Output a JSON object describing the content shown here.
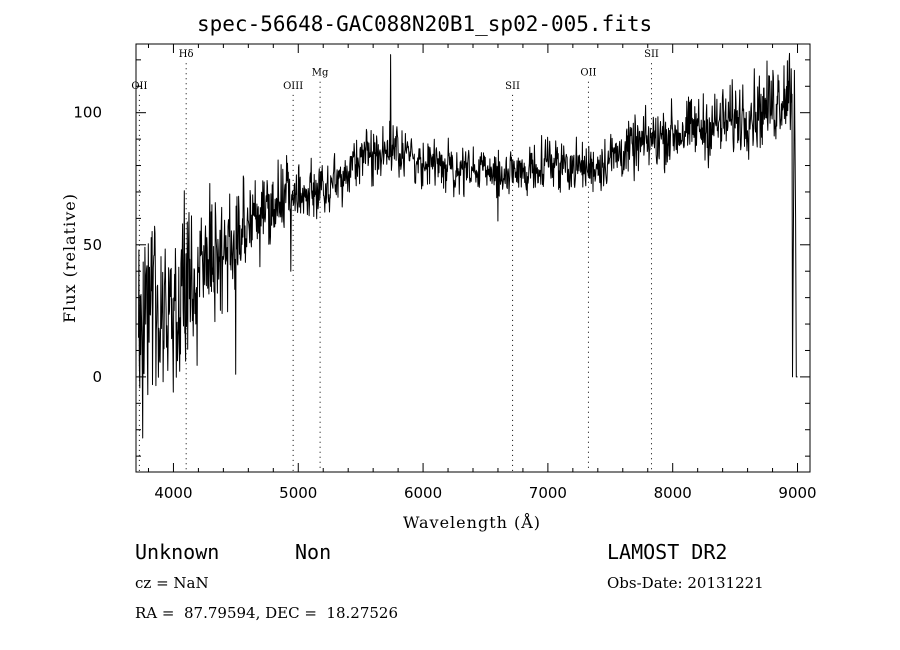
{
  "chart_data": {
    "type": "line",
    "title": "spec-56648-GAC088N20B1_sp02-005.fits",
    "xlabel": "Wavelength (Å)",
    "ylabel": "Flux (relative)",
    "xlim": [
      3700,
      9100
    ],
    "ylim": [
      -36,
      126
    ],
    "x_ticks": [
      4000,
      5000,
      6000,
      7000,
      8000,
      9000
    ],
    "y_ticks": [
      0,
      50,
      100
    ],
    "x_tick_labels": [
      "4000",
      "5000",
      "6000",
      "7000",
      "8000",
      "9000"
    ],
    "y_tick_labels": [
      "0",
      "50",
      "100"
    ],
    "grid": false,
    "lines": [
      {
        "label": "OII",
        "x": 3727,
        "label_y": 109
      },
      {
        "label": "Hδ",
        "x": 4102,
        "label_y": 121
      },
      {
        "label": "OIII",
        "x": 4959,
        "label_y": 109
      },
      {
        "label": "Mg",
        "x": 5175,
        "label_y": 114
      },
      {
        "label": "SII",
        "x": 6717,
        "label_y": 109
      },
      {
        "label": "OII",
        "x": 7325,
        "label_y": 114
      },
      {
        "label": "SII",
        "x": 7830,
        "label_y": 121
      }
    ],
    "spectrum_continuum": [
      [
        3720,
        22
      ],
      [
        3800,
        24
      ],
      [
        3900,
        26
      ],
      [
        4000,
        28
      ],
      [
        4100,
        33
      ],
      [
        4200,
        38
      ],
      [
        4300,
        43
      ],
      [
        4400,
        48
      ],
      [
        4500,
        53
      ],
      [
        4600,
        57
      ],
      [
        4700,
        61
      ],
      [
        4800,
        64
      ],
      [
        4900,
        67
      ],
      [
        5000,
        69
      ],
      [
        5100,
        70
      ],
      [
        5200,
        71
      ],
      [
        5300,
        74
      ],
      [
        5400,
        79
      ],
      [
        5500,
        83
      ],
      [
        5600,
        85
      ],
      [
        5700,
        86
      ],
      [
        5800,
        86
      ],
      [
        5900,
        84
      ],
      [
        6000,
        82
      ],
      [
        6100,
        80
      ],
      [
        6200,
        79
      ],
      [
        6300,
        78
      ],
      [
        6400,
        78
      ],
      [
        6500,
        78
      ],
      [
        6600,
        77
      ],
      [
        6700,
        76
      ],
      [
        6800,
        77
      ],
      [
        6900,
        80
      ],
      [
        7000,
        82
      ],
      [
        7100,
        81
      ],
      [
        7200,
        80
      ],
      [
        7300,
        79
      ],
      [
        7400,
        80
      ],
      [
        7500,
        83
      ],
      [
        7600,
        85
      ],
      [
        7700,
        87
      ],
      [
        7800,
        89
      ],
      [
        7900,
        91
      ],
      [
        8000,
        92
      ],
      [
        8100,
        93
      ],
      [
        8200,
        94
      ],
      [
        8300,
        95
      ],
      [
        8400,
        96
      ],
      [
        8500,
        98
      ],
      [
        8600,
        100
      ],
      [
        8700,
        101
      ],
      [
        8800,
        103
      ],
      [
        8900,
        108
      ],
      [
        8960,
        112
      ]
    ],
    "spectrum_noise": [
      [
        3700,
        30
      ],
      [
        4000,
        22
      ],
      [
        4300,
        16
      ],
      [
        4600,
        12
      ],
      [
        5000,
        9
      ],
      [
        5500,
        7
      ],
      [
        6000,
        6
      ],
      [
        6500,
        6
      ],
      [
        7000,
        6
      ],
      [
        7500,
        7
      ],
      [
        8000,
        8
      ],
      [
        8500,
        9
      ],
      [
        8900,
        11
      ],
      [
        9000,
        12
      ]
    ],
    "spectrum_spikes": [
      {
        "x": 5740,
        "y": 122
      },
      {
        "x": 4425,
        "y": 46
      },
      {
        "x": 4500,
        "y": 1
      },
      {
        "x": 4940,
        "y": 40
      },
      {
        "x": 6600,
        "y": 59
      },
      {
        "x": 8990,
        "y": 0
      }
    ]
  },
  "footer": {
    "object_type": "Unknown",
    "subtype": "Non",
    "survey": "LAMOST DR2",
    "redshift": "cz = NaN",
    "obs_date": "Obs-Date: 20131221",
    "coords": "RA =  87.79594, DEC =  18.27526"
  }
}
